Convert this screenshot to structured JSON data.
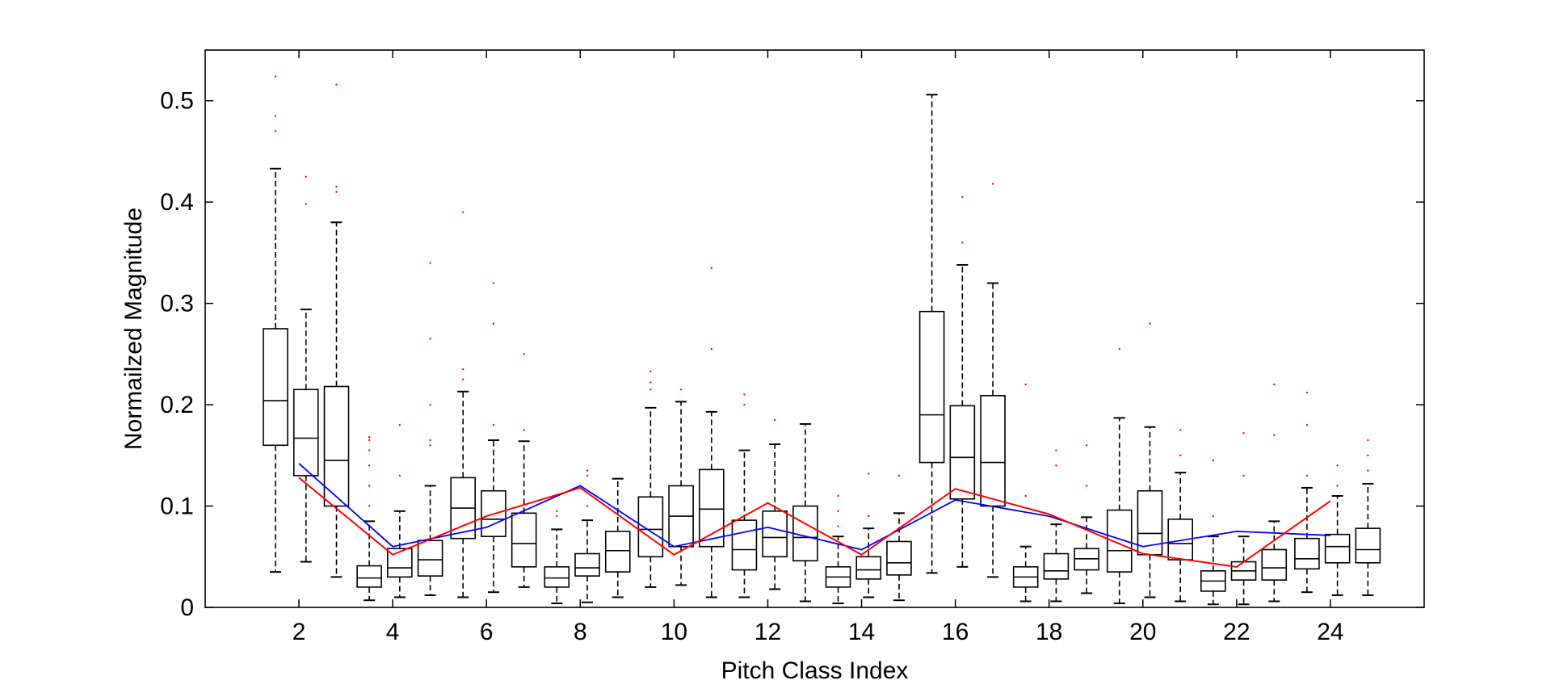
{
  "chart_data": {
    "type": "box",
    "title": "",
    "xlabel": "Pitch Class Index",
    "ylabel": "Normailzed Magnitude",
    "xlim": [
      0,
      26
    ],
    "ylim": [
      0,
      0.55
    ],
    "xticks": [
      2,
      4,
      6,
      8,
      10,
      12,
      14,
      16,
      18,
      20,
      22,
      24
    ],
    "yticks": [
      0,
      0.1,
      0.2,
      0.3,
      0.4,
      0.5
    ],
    "ytick_labels": [
      "0",
      "0.1",
      "0.2",
      "0.3",
      "0.4",
      "0.5"
    ],
    "grid": false,
    "legend": "none",
    "boxes": [
      {
        "x": 1.5,
        "whisker_low": 0.035,
        "q1": 0.16,
        "median": 0.204,
        "q3": 0.275,
        "whisker_high": 0.433,
        "outliers": [
          0.47,
          0.485,
          0.524
        ]
      },
      {
        "x": 2.15,
        "whisker_low": 0.045,
        "q1": 0.13,
        "median": 0.167,
        "q3": 0.215,
        "whisker_high": 0.294,
        "outliers": [
          0.398,
          0.425
        ]
      },
      {
        "x": 2.8,
        "whisker_low": 0.03,
        "q1": 0.1,
        "median": 0.145,
        "q3": 0.218,
        "whisker_high": 0.38,
        "outliers": [
          0.41,
          0.415,
          0.516
        ]
      },
      {
        "x": 3.5,
        "whisker_low": 0.007,
        "q1": 0.02,
        "median": 0.029,
        "q3": 0.041,
        "whisker_high": 0.085,
        "outliers": [
          0.1,
          0.12,
          0.14,
          0.155,
          0.165,
          0.168
        ]
      },
      {
        "x": 4.15,
        "whisker_low": 0.01,
        "q1": 0.03,
        "median": 0.039,
        "q3": 0.058,
        "whisker_high": 0.095,
        "outliers": [
          0.13,
          0.18
        ]
      },
      {
        "x": 4.8,
        "whisker_low": 0.012,
        "q1": 0.031,
        "median": 0.047,
        "q3": 0.066,
        "whisker_high": 0.12,
        "outliers": [
          0.16,
          0.165,
          0.2,
          0.265,
          0.34
        ]
      },
      {
        "x": 5.5,
        "whisker_low": 0.01,
        "q1": 0.068,
        "median": 0.098,
        "q3": 0.128,
        "whisker_high": 0.213,
        "outliers": [
          0.225,
          0.235,
          0.39
        ]
      },
      {
        "x": 6.15,
        "whisker_low": 0.015,
        "q1": 0.07,
        "median": 0.087,
        "q3": 0.115,
        "whisker_high": 0.165,
        "outliers": [
          0.18,
          0.28,
          0.32
        ]
      },
      {
        "x": 6.8,
        "whisker_low": 0.02,
        "q1": 0.04,
        "median": 0.063,
        "q3": 0.093,
        "whisker_high": 0.164,
        "outliers": [
          0.175,
          0.25
        ]
      },
      {
        "x": 7.5,
        "whisker_low": 0.004,
        "q1": 0.02,
        "median": 0.029,
        "q3": 0.04,
        "whisker_high": 0.077,
        "outliers": [
          0.09,
          0.095
        ]
      },
      {
        "x": 8.15,
        "whisker_low": 0.005,
        "q1": 0.031,
        "median": 0.039,
        "q3": 0.053,
        "whisker_high": 0.086,
        "outliers": [
          0.1,
          0.13,
          0.135
        ]
      },
      {
        "x": 8.8,
        "whisker_low": 0.01,
        "q1": 0.035,
        "median": 0.056,
        "q3": 0.075,
        "whisker_high": 0.127,
        "outliers": []
      },
      {
        "x": 9.5,
        "whisker_low": 0.02,
        "q1": 0.05,
        "median": 0.077,
        "q3": 0.109,
        "whisker_high": 0.197,
        "outliers": [
          0.215,
          0.222,
          0.233
        ]
      },
      {
        "x": 10.15,
        "whisker_low": 0.022,
        "q1": 0.06,
        "median": 0.09,
        "q3": 0.12,
        "whisker_high": 0.203,
        "outliers": [
          0.215
        ]
      },
      {
        "x": 10.8,
        "whisker_low": 0.01,
        "q1": 0.06,
        "median": 0.097,
        "q3": 0.136,
        "whisker_high": 0.193,
        "outliers": [
          0.255,
          0.335
        ]
      },
      {
        "x": 11.5,
        "whisker_low": 0.01,
        "q1": 0.037,
        "median": 0.057,
        "q3": 0.086,
        "whisker_high": 0.155,
        "outliers": [
          0.2,
          0.21
        ]
      },
      {
        "x": 12.15,
        "whisker_low": 0.018,
        "q1": 0.05,
        "median": 0.069,
        "q3": 0.095,
        "whisker_high": 0.161,
        "outliers": [
          0.185
        ]
      },
      {
        "x": 12.8,
        "whisker_low": 0.006,
        "q1": 0.046,
        "median": 0.069,
        "q3": 0.1,
        "whisker_high": 0.181,
        "outliers": []
      },
      {
        "x": 13.5,
        "whisker_low": 0.004,
        "q1": 0.02,
        "median": 0.03,
        "q3": 0.04,
        "whisker_high": 0.07,
        "outliers": [
          0.08,
          0.095,
          0.11
        ]
      },
      {
        "x": 14.15,
        "whisker_low": 0.01,
        "q1": 0.028,
        "median": 0.037,
        "q3": 0.05,
        "whisker_high": 0.078,
        "outliers": [
          0.09,
          0.132
        ]
      },
      {
        "x": 14.8,
        "whisker_low": 0.007,
        "q1": 0.032,
        "median": 0.044,
        "q3": 0.065,
        "whisker_high": 0.093,
        "outliers": [
          0.13
        ]
      },
      {
        "x": 15.5,
        "whisker_low": 0.034,
        "q1": 0.143,
        "median": 0.19,
        "q3": 0.292,
        "whisker_high": 0.506,
        "outliers": []
      },
      {
        "x": 16.15,
        "whisker_low": 0.04,
        "q1": 0.107,
        "median": 0.148,
        "q3": 0.199,
        "whisker_high": 0.338,
        "outliers": [
          0.36,
          0.405
        ]
      },
      {
        "x": 16.8,
        "whisker_low": 0.03,
        "q1": 0.1,
        "median": 0.143,
        "q3": 0.209,
        "whisker_high": 0.32,
        "outliers": [
          0.418
        ]
      },
      {
        "x": 17.5,
        "whisker_low": 0.006,
        "q1": 0.02,
        "median": 0.03,
        "q3": 0.04,
        "whisker_high": 0.06,
        "outliers": [
          0.11,
          0.22
        ]
      },
      {
        "x": 18.15,
        "whisker_low": 0.006,
        "q1": 0.028,
        "median": 0.036,
        "q3": 0.053,
        "whisker_high": 0.082,
        "outliers": [
          0.14,
          0.155
        ]
      },
      {
        "x": 18.8,
        "whisker_low": 0.014,
        "q1": 0.037,
        "median": 0.048,
        "q3": 0.058,
        "whisker_high": 0.089,
        "outliers": [
          0.12,
          0.16
        ]
      },
      {
        "x": 19.5,
        "whisker_low": 0.004,
        "q1": 0.035,
        "median": 0.056,
        "q3": 0.096,
        "whisker_high": 0.187,
        "outliers": [
          0.255
        ]
      },
      {
        "x": 20.15,
        "whisker_low": 0.01,
        "q1": 0.052,
        "median": 0.073,
        "q3": 0.115,
        "whisker_high": 0.178,
        "outliers": [
          0.28
        ]
      },
      {
        "x": 20.8,
        "whisker_low": 0.006,
        "q1": 0.047,
        "median": 0.063,
        "q3": 0.087,
        "whisker_high": 0.133,
        "outliers": [
          0.15,
          0.175
        ]
      },
      {
        "x": 21.5,
        "whisker_low": 0.003,
        "q1": 0.016,
        "median": 0.026,
        "q3": 0.036,
        "whisker_high": 0.07,
        "outliers": [
          0.09,
          0.145
        ]
      },
      {
        "x": 22.15,
        "whisker_low": 0.003,
        "q1": 0.027,
        "median": 0.036,
        "q3": 0.045,
        "whisker_high": 0.07,
        "outliers": [
          0.13,
          0.172
        ]
      },
      {
        "x": 22.8,
        "whisker_low": 0.006,
        "q1": 0.027,
        "median": 0.039,
        "q3": 0.057,
        "whisker_high": 0.085,
        "outliers": [
          0.17,
          0.22
        ]
      },
      {
        "x": 23.5,
        "whisker_low": 0.015,
        "q1": 0.038,
        "median": 0.048,
        "q3": 0.068,
        "whisker_high": 0.118,
        "outliers": [
          0.13,
          0.18,
          0.212
        ]
      },
      {
        "x": 24.15,
        "whisker_low": 0.012,
        "q1": 0.044,
        "median": 0.06,
        "q3": 0.072,
        "whisker_high": 0.11,
        "outliers": [
          0.12,
          0.14
        ]
      },
      {
        "x": 24.8,
        "whisker_low": 0.012,
        "q1": 0.044,
        "median": 0.057,
        "q3": 0.078,
        "whisker_high": 0.122,
        "outliers": [
          0.135,
          0.15,
          0.165
        ]
      }
    ],
    "series": [
      {
        "color": "#0000ff",
        "x": [
          2,
          4,
          6,
          8,
          10,
          12,
          14,
          16,
          18,
          20,
          22,
          24
        ],
        "values": [
          0.142,
          0.06,
          0.079,
          0.12,
          0.06,
          0.079,
          0.057,
          0.106,
          0.09,
          0.06,
          0.075,
          0.071
        ]
      },
      {
        "color": "#ff0000",
        "x": [
          2,
          4,
          6,
          8,
          10,
          12,
          14,
          16,
          18,
          20,
          22,
          24
        ],
        "values": [
          0.128,
          0.052,
          0.09,
          0.118,
          0.052,
          0.103,
          0.052,
          0.117,
          0.092,
          0.053,
          0.04,
          0.105
        ]
      }
    ],
    "box_color": "#000000",
    "outlier_color": "#ff0000"
  }
}
